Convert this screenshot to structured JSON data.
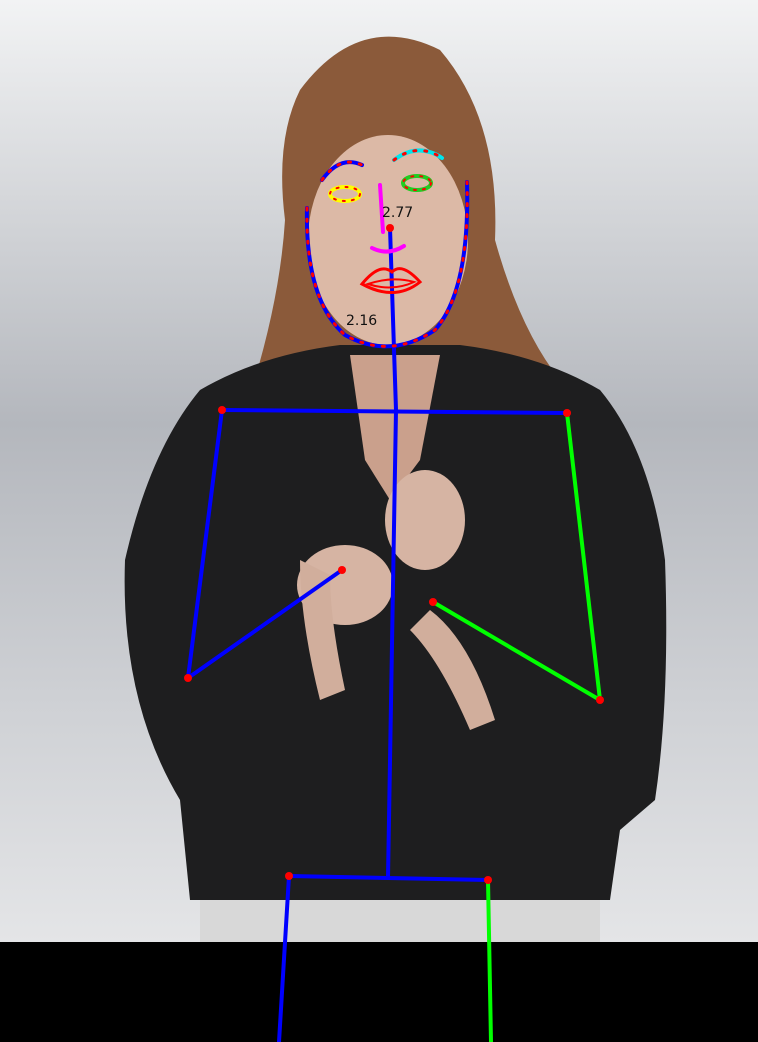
{
  "image": {
    "description_free": true,
    "colors": {
      "backdrop": "#d9dadd",
      "backdrop_dark": "#9fa3aa",
      "letterbox": "#000000",
      "jacket": "#1e1e1f",
      "skin": "#dcb9a6",
      "hair": "#8b5a3a",
      "desk": "#d8d8d8"
    }
  },
  "pose_overlay": {
    "colors": {
      "body_left": "#0000ff",
      "body_right": "#00ff00",
      "joint": "#ff0000",
      "face_outline": "#0000ff",
      "face_outline_dots": "#ff0000",
      "brow_right": "#00e5ee",
      "eye_left": "#ffff00",
      "eye_right": "#22cc22",
      "nose": "#ff00ff",
      "mouth": "#ff0000"
    },
    "labels": {
      "nose_score": "2.77",
      "chin_score": "2.16"
    }
  }
}
